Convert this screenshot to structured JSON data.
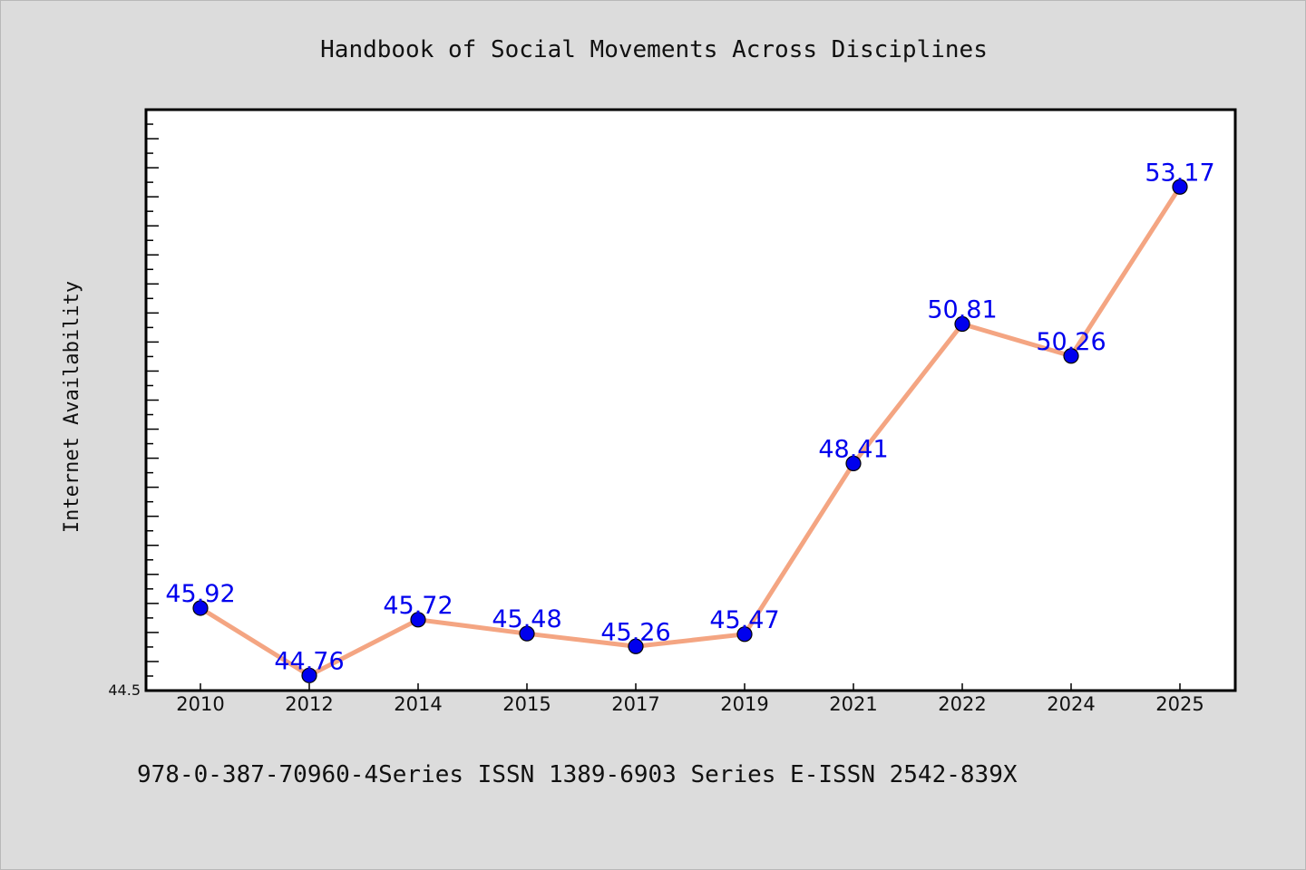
{
  "chart_data": {
    "type": "line",
    "title": "Handbook of Social Movements Across Disciplines",
    "ylabel": "Internet Availability",
    "xlabel": "",
    "categories": [
      "2010",
      "2012",
      "2014",
      "2015",
      "2017",
      "2019",
      "2021",
      "2022",
      "2024",
      "2025"
    ],
    "values": [
      45.92,
      44.76,
      45.72,
      45.48,
      45.26,
      45.47,
      48.41,
      50.81,
      50.26,
      53.17
    ],
    "data_labels": [
      "45.92",
      "44.76",
      "45.72",
      "45.48",
      "45.26",
      "45.47",
      "48.41",
      "50.81",
      "50.26",
      "53.17"
    ],
    "ylim": [
      44.5,
      54.5
    ],
    "y_tick_labels": [
      "44.5"
    ],
    "grid": false,
    "line_color": "#f4a582",
    "marker_color": "#0000ee",
    "label_color": "#0000ee"
  },
  "footer": {
    "text": "978-0-387-70960-4Series ISSN 1389-6903 Series E-ISSN 2542-839X"
  }
}
